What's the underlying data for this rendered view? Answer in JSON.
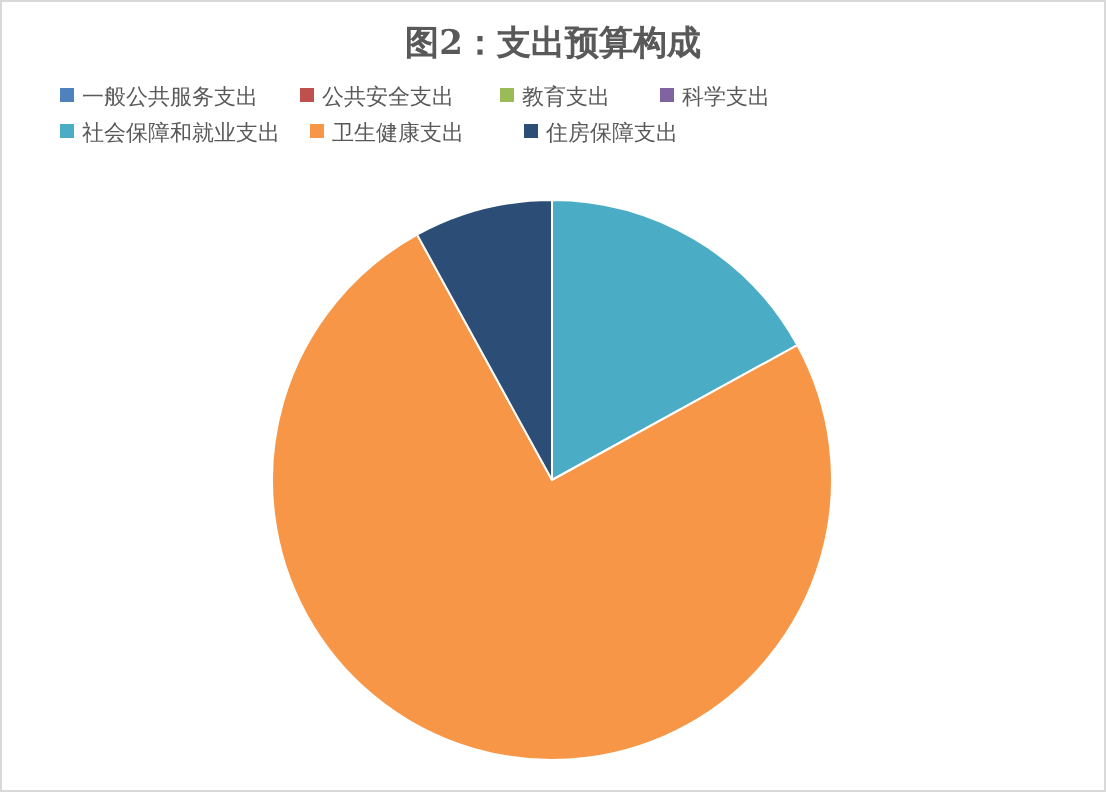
{
  "chart_data": {
    "type": "pie",
    "title": "图2：支出预算构成",
    "categories": [
      "一般公共服务支出",
      "公共安全支出",
      "教育支出",
      "科学支出",
      "社会保障和就业支出",
      "卫生健康支出",
      "住房保障支出"
    ],
    "values": [
      0,
      0,
      0,
      0,
      17,
      75,
      8
    ],
    "colors": [
      "#4f81bd",
      "#c0504d",
      "#9bbb59",
      "#8064a2",
      "#4bacc6",
      "#f79646",
      "#2c4d75"
    ],
    "legend": "top"
  }
}
